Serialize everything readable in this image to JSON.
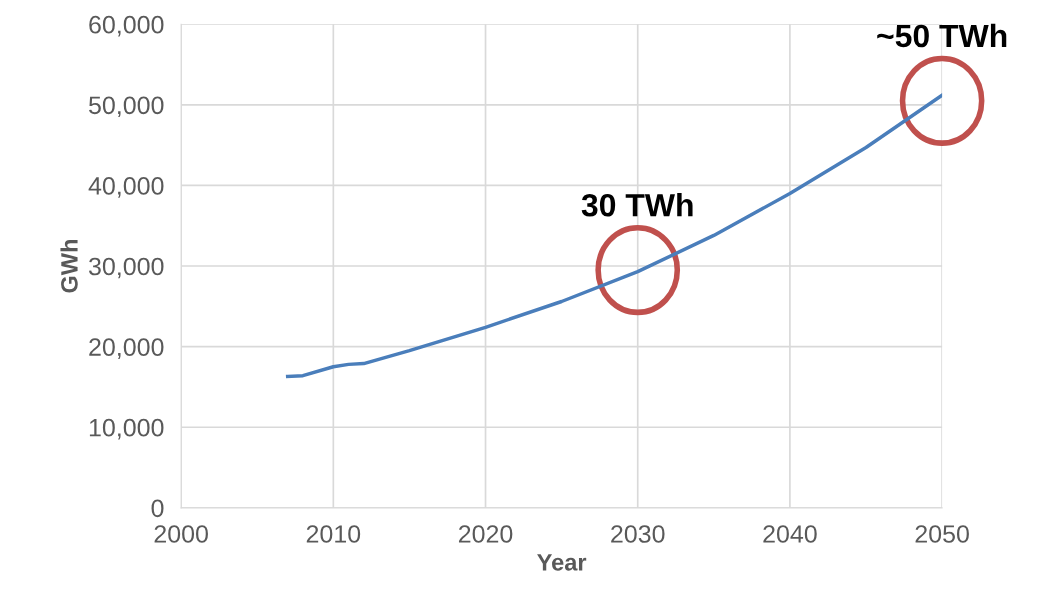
{
  "chart_data": {
    "type": "line",
    "xlabel": "Year",
    "ylabel": "GWh",
    "x": [
      2007,
      2008,
      2010,
      2011,
      2012,
      2015,
      2020,
      2025,
      2030,
      2035,
      2040,
      2045,
      2050
    ],
    "series": [
      {
        "color": "#4a7ebb",
        "values": [
          16300,
          16400,
          17500,
          17800,
          17900,
          19500,
          22400,
          25600,
          29300,
          33800,
          39000,
          44700,
          51200
        ]
      }
    ],
    "xlim": [
      2000,
      2050
    ],
    "xticks": [
      2000,
      2010,
      2020,
      2030,
      2040,
      2050
    ],
    "ylim": [
      0,
      60000
    ],
    "yticks": [
      {
        "value": 0,
        "label": "0"
      },
      {
        "value": 10000,
        "label": "10,000"
      },
      {
        "value": 20000,
        "label": "20,000"
      },
      {
        "value": 30000,
        "label": "30,000"
      },
      {
        "value": 40000,
        "label": "40,000"
      },
      {
        "value": 50000,
        "label": "50,000"
      },
      {
        "value": 60000,
        "label": "60,000"
      }
    ],
    "grid": true,
    "marker": "none",
    "line_style": "solid",
    "legend": false,
    "annotations": [
      {
        "text": "30 TWh",
        "x": 2030,
        "y": 29500
      },
      {
        "text": "~50 TWh",
        "x": 2050,
        "y": 50500
      }
    ]
  }
}
